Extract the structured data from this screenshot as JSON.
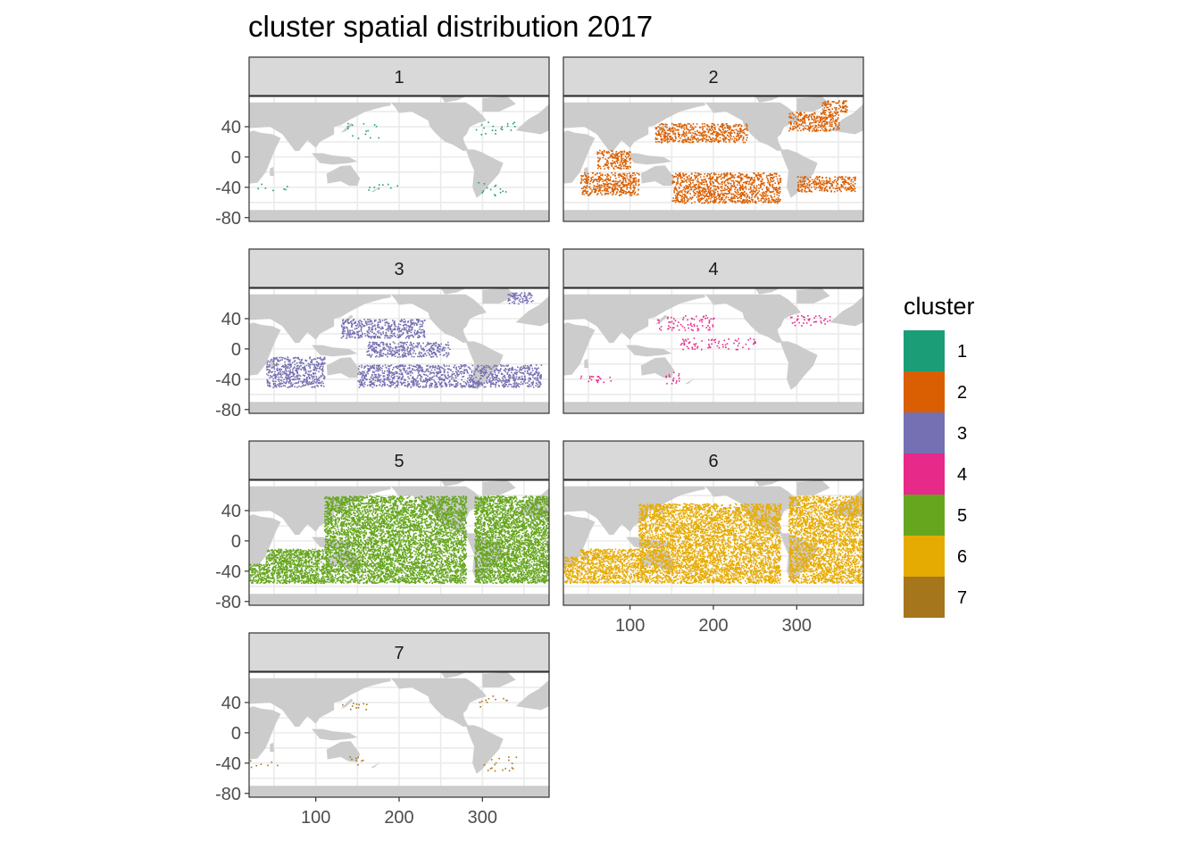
{
  "chart_data": {
    "type": "scatter",
    "title": "cluster spatial distribution 2017",
    "xlabel": "",
    "ylabel": "",
    "xlim": [
      20,
      380
    ],
    "ylim": [
      -85,
      80
    ],
    "x_ticks": [
      100,
      200,
      300
    ],
    "y_ticks": [
      40,
      0,
      -40,
      -80
    ],
    "grid": true,
    "background_map": "world land in grey",
    "legend": {
      "title": "cluster",
      "placement": "right",
      "entries": [
        {
          "label": "1",
          "color": "#1B9E77"
        },
        {
          "label": "2",
          "color": "#D95F02"
        },
        {
          "label": "3",
          "color": "#7570B3"
        },
        {
          "label": "4",
          "color": "#E7298A"
        },
        {
          "label": "5",
          "color": "#66A61E"
        },
        {
          "label": "6",
          "color": "#E6AB02"
        },
        {
          "label": "7",
          "color": "#A6761D"
        }
      ]
    },
    "facets": [
      {
        "label": "1",
        "color": "#1B9E77",
        "density": 0.05,
        "regions": [
          [
            135,
            175,
            25,
            45
          ],
          [
            290,
            345,
            30,
            50
          ],
          [
            290,
            330,
            -50,
            -30
          ],
          [
            30,
            70,
            -45,
            -35
          ],
          [
            150,
            200,
            -45,
            -35
          ]
        ]
      },
      {
        "label": "2",
        "color": "#D95F02",
        "density": 0.55,
        "regions": [
          [
            130,
            240,
            20,
            45
          ],
          [
            290,
            350,
            35,
            60
          ],
          [
            40,
            110,
            -50,
            -20
          ],
          [
            150,
            280,
            -60,
            -20
          ],
          [
            300,
            370,
            -45,
            -25
          ],
          [
            60,
            100,
            -15,
            10
          ],
          [
            330,
            360,
            60,
            75
          ]
        ]
      },
      {
        "label": "3",
        "color": "#7570B3",
        "density": 0.5,
        "regions": [
          [
            130,
            230,
            15,
            40
          ],
          [
            160,
            260,
            -10,
            10
          ],
          [
            40,
            110,
            -50,
            -10
          ],
          [
            150,
            300,
            -50,
            -20
          ],
          [
            300,
            370,
            -50,
            -20
          ],
          [
            330,
            360,
            60,
            75
          ]
        ]
      },
      {
        "label": "4",
        "color": "#E7298A",
        "density": 0.15,
        "regions": [
          [
            130,
            200,
            25,
            45
          ],
          [
            160,
            250,
            0,
            15
          ],
          [
            290,
            340,
            30,
            45
          ],
          [
            40,
            80,
            -45,
            -35
          ],
          [
            140,
            160,
            -45,
            -30
          ]
        ]
      },
      {
        "label": "5",
        "color": "#66A61E",
        "density": 0.9,
        "regions": [
          [
            110,
            280,
            -55,
            60
          ],
          [
            40,
            110,
            -55,
            -10
          ],
          [
            290,
            380,
            -55,
            60
          ],
          [
            20,
            40,
            -55,
            -30
          ]
        ]
      },
      {
        "label": "6",
        "color": "#E6AB02",
        "density": 0.75,
        "regions": [
          [
            110,
            280,
            -55,
            50
          ],
          [
            40,
            110,
            -55,
            -10
          ],
          [
            290,
            380,
            -55,
            60
          ],
          [
            20,
            40,
            -55,
            -20
          ]
        ]
      },
      {
        "label": "7",
        "color": "#A6761D",
        "density": 0.05,
        "regions": [
          [
            130,
            170,
            30,
            45
          ],
          [
            290,
            330,
            35,
            50
          ],
          [
            290,
            340,
            -50,
            -30
          ],
          [
            20,
            60,
            -45,
            -35
          ],
          [
            130,
            160,
            -45,
            -30
          ]
        ]
      }
    ]
  }
}
